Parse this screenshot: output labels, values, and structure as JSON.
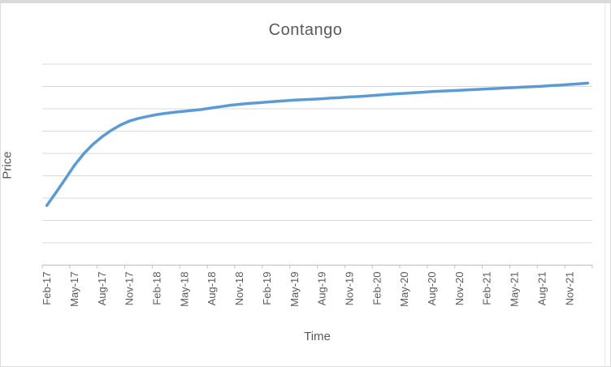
{
  "window": {
    "background": "#ffffff",
    "border_color": "#d9d9d9"
  },
  "chart_data": {
    "type": "line",
    "title": "Contango",
    "xlabel": "Time",
    "ylabel": "Price",
    "legend": "none",
    "grid": "horizontal",
    "ylim": [
      0,
      90
    ],
    "y_gridline_interval": 10,
    "y_tick_labels_visible": false,
    "x_tick_label_interval": 3,
    "x_tick_labels": [
      "Feb-17",
      "May-17",
      "Aug-17",
      "Nov-17",
      "Feb-18",
      "May-18",
      "Aug-18",
      "Nov-18",
      "Feb-19",
      "May-19",
      "Aug-19",
      "Nov-19",
      "Feb-20",
      "May-20",
      "Aug-20",
      "Nov-20",
      "Feb-21",
      "May-21",
      "Aug-21",
      "Nov-21"
    ],
    "series": [
      {
        "name": "Price",
        "color": "#5b9bd5",
        "x": [
          "Feb-17",
          "Mar-17",
          "Apr-17",
          "May-17",
          "Jun-17",
          "Jul-17",
          "Aug-17",
          "Sep-17",
          "Oct-17",
          "Nov-17",
          "Dec-17",
          "Jan-18",
          "Feb-18",
          "Mar-18",
          "Apr-18",
          "May-18",
          "Jun-18",
          "Jul-18",
          "Aug-18",
          "Sep-18",
          "Oct-18",
          "Nov-18",
          "Dec-18",
          "Jan-19",
          "Feb-19",
          "Mar-19",
          "Apr-19",
          "May-19",
          "Jun-19",
          "Jul-19",
          "Aug-19",
          "Sep-19",
          "Oct-19",
          "Nov-19",
          "Dec-19",
          "Jan-20",
          "Feb-20",
          "Mar-20",
          "Apr-20",
          "May-20",
          "Jun-20",
          "Jul-20",
          "Aug-20",
          "Sep-20",
          "Oct-20",
          "Nov-20",
          "Dec-20",
          "Jan-21",
          "Feb-21",
          "Mar-21",
          "Apr-21",
          "May-21",
          "Jun-21",
          "Jul-21",
          "Aug-21",
          "Sep-21",
          "Oct-21",
          "Nov-21",
          "Dec-21",
          "Jan-22"
        ],
        "values": [
          26.7,
          32.5,
          38.5,
          44.6,
          49.8,
          54.0,
          57.4,
          60.3,
          62.7,
          64.5,
          65.7,
          66.6,
          67.4,
          68.0,
          68.5,
          68.9,
          69.3,
          69.8,
          70.4,
          71.0,
          71.6,
          72.0,
          72.4,
          72.7,
          73.0,
          73.3,
          73.6,
          73.9,
          74.1,
          74.3,
          74.5,
          74.8,
          75.0,
          75.3,
          75.5,
          75.8,
          76.1,
          76.4,
          76.7,
          76.9,
          77.2,
          77.4,
          77.7,
          77.9,
          78.1,
          78.3,
          78.5,
          78.7,
          78.9,
          79.1,
          79.3,
          79.5,
          79.7,
          79.9,
          80.1,
          80.4,
          80.6,
          80.9,
          81.2,
          81.5
        ]
      }
    ],
    "colors": {
      "line": "#5b9bd5",
      "title_text": "#595959",
      "axis_title_text": "#595959",
      "tick_label_text": "#595959",
      "gridline": "#d9d9d9",
      "axis_line": "#bfbfbf"
    }
  }
}
